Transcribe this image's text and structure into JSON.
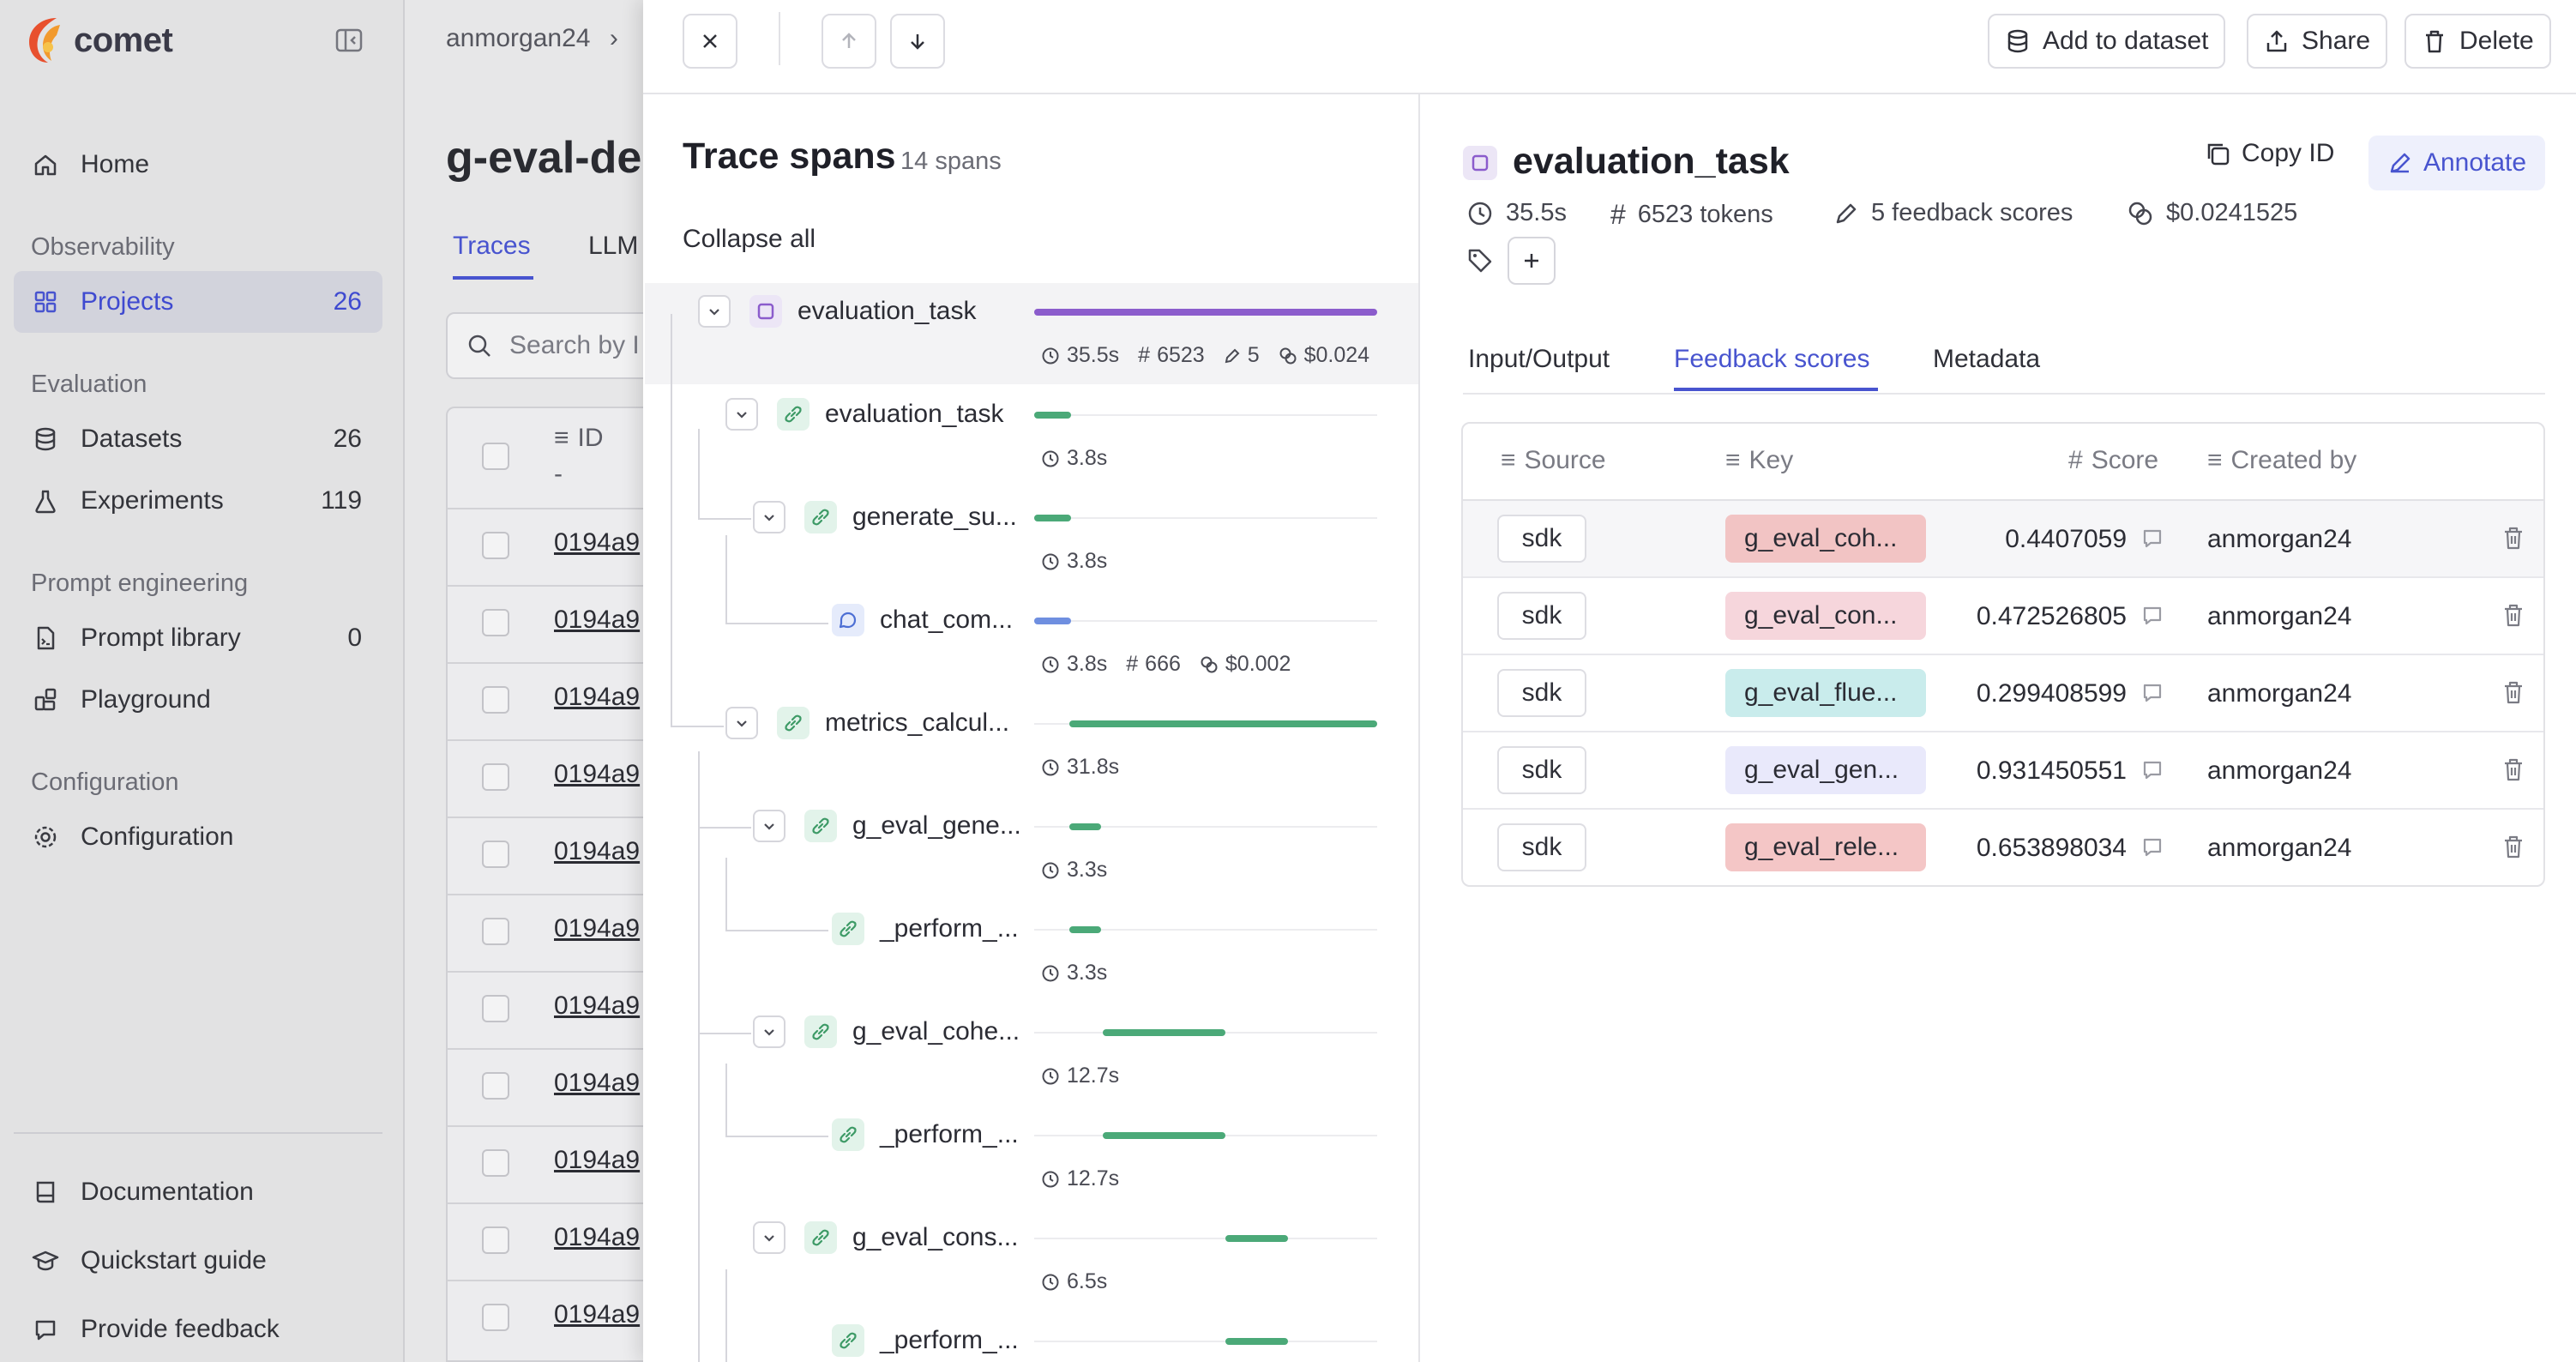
{
  "app": {
    "name": "comet"
  },
  "sidebar": {
    "home": "Home",
    "observability_label": "Observability",
    "projects": {
      "label": "Projects",
      "count": "26"
    },
    "evaluation_label": "Evaluation",
    "datasets": {
      "label": "Datasets",
      "count": "26"
    },
    "experiments": {
      "label": "Experiments",
      "count": "119"
    },
    "prompt_label": "Prompt engineering",
    "prompt_library": {
      "label": "Prompt library",
      "count": "0"
    },
    "playground": "Playground",
    "configuration_label": "Configuration",
    "configuration": "Configuration",
    "documentation": "Documentation",
    "quickstart": "Quickstart guide",
    "feedback": "Provide feedback"
  },
  "background": {
    "breadcrumb": "anmorgan24",
    "page_title": "g-eval-de",
    "tab_traces": "Traces",
    "tab_llm": "LLM",
    "search_placeholder": "Search by I",
    "col_id": "ID",
    "col_id_sub": "-",
    "row_ids": [
      "0194a9",
      "0194a9",
      "0194a9",
      "0194a9",
      "0194a9",
      "0194a9",
      "0194a9",
      "0194a9",
      "0194a9",
      "0194a9",
      "0194a9"
    ]
  },
  "toolbar": {
    "add_to_dataset": "Add to dataset",
    "share": "Share",
    "delete": "Delete"
  },
  "trace": {
    "title": "Trace spans",
    "count": "14 spans",
    "collapse_all": "Collapse all",
    "spans": [
      {
        "name": "evaluation_task",
        "type": "purple",
        "duration": "35.5s",
        "tokens": "6523",
        "scores": "5",
        "cost": "$0.024",
        "bar_start": 0.0,
        "bar_width": 1.0
      },
      {
        "name": "evaluation_task",
        "type": "green",
        "duration": "3.8s",
        "bar_start": 0.0,
        "bar_width": 0.107
      },
      {
        "name": "generate_su...",
        "type": "green",
        "duration": "3.8s",
        "bar_start": 0.0,
        "bar_width": 0.107
      },
      {
        "name": "chat_com...",
        "type": "blue",
        "duration": "3.8s",
        "tokens": "666",
        "cost": "$0.002",
        "bar_start": 0.0,
        "bar_width": 0.107
      },
      {
        "name": "metrics_calcul...",
        "type": "green",
        "duration": "31.8s",
        "bar_start": 0.103,
        "bar_width": 0.896
      },
      {
        "name": "g_eval_gene...",
        "type": "green",
        "duration": "3.3s",
        "bar_start": 0.103,
        "bar_width": 0.093
      },
      {
        "name": "_perform_...",
        "type": "green",
        "duration": "3.3s",
        "bar_start": 0.103,
        "bar_width": 0.093
      },
      {
        "name": "g_eval_cohe...",
        "type": "green",
        "duration": "12.7s",
        "bar_start": 0.199,
        "bar_width": 0.358
      },
      {
        "name": "_perform_...",
        "type": "green",
        "duration": "12.7s",
        "bar_start": 0.199,
        "bar_width": 0.358
      },
      {
        "name": "g_eval_cons...",
        "type": "green",
        "duration": "6.5s",
        "bar_start": 0.557,
        "bar_width": 0.183
      },
      {
        "name": "_perform_...",
        "type": "green",
        "duration": "",
        "bar_start": 0.557,
        "bar_width": 0.183
      }
    ]
  },
  "detail": {
    "title": "evaluation_task",
    "copy_id": "Copy ID",
    "annotate": "Annotate",
    "duration": "35.5s",
    "tokens": "6523 tokens",
    "feedback_scores": "5 feedback scores",
    "cost": "$0.0241525",
    "tabs": [
      "Input/Output",
      "Feedback scores",
      "Metadata"
    ],
    "table": {
      "headers": [
        "Source",
        "Key",
        "Score",
        "Created by"
      ],
      "rows": [
        {
          "source": "sdk",
          "key": "g_eval_coh...",
          "score": "0.4407059",
          "created_by": "anmorgan24",
          "color": "#f2c4c4"
        },
        {
          "source": "sdk",
          "key": "g_eval_con...",
          "score": "0.472526805",
          "created_by": "anmorgan24",
          "color": "#f6d6dc"
        },
        {
          "source": "sdk",
          "key": "g_eval_flue...",
          "score": "0.299408599",
          "created_by": "anmorgan24",
          "color": "#c9ecec"
        },
        {
          "source": "sdk",
          "key": "g_eval_gen...",
          "score": "0.931450551",
          "created_by": "anmorgan24",
          "color": "#e9e9fb"
        },
        {
          "source": "sdk",
          "key": "g_eval_rele...",
          "score": "0.653898034",
          "created_by": "anmorgan24",
          "color": "#f4c6c6"
        }
      ]
    }
  },
  "colors": {
    "accent": "#4854cf",
    "span_purple": "#8b5ccc",
    "span_green": "#4ba978",
    "span_blue": "#6f8fe0"
  }
}
